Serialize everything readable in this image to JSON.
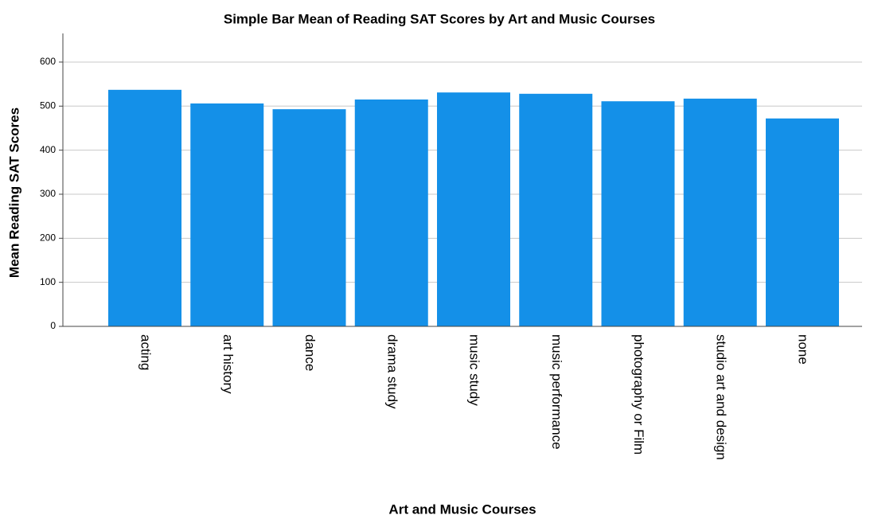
{
  "chart_data": {
    "type": "bar",
    "title": "Simple Bar Mean of Reading SAT Scores by Art and Music Courses",
    "x_label": "Art and Music Courses",
    "y_label": "Mean Reading SAT Scores",
    "categories": [
      "acting",
      "art history",
      "dance",
      "drama study",
      "music study",
      "music performance",
      "photography or Film",
      "studio art and design",
      "none"
    ],
    "values": [
      537,
      506,
      493,
      515,
      531,
      528,
      511,
      517,
      472
    ],
    "color": "#1490e8",
    "ylim": [
      0,
      665
    ],
    "yticks": [
      0,
      100,
      200,
      300,
      400,
      500,
      600
    ],
    "grid": true
  }
}
